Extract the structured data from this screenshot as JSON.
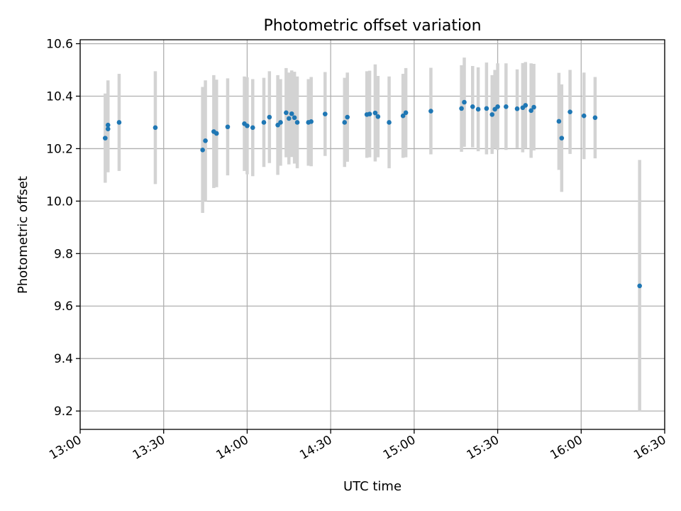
{
  "chart_data": {
    "type": "scatter",
    "title": "Photometric offset variation",
    "xlabel": "UTC time",
    "ylabel": "Photometric offset",
    "xlim_minutes_after_13_00": [
      0,
      210
    ],
    "ylim": [
      9.13,
      10.615
    ],
    "grid": true,
    "legend": "none",
    "x_ticks": [
      "13:00",
      "13:30",
      "14:00",
      "14:30",
      "15:00",
      "15:30",
      "16:00",
      "16:30"
    ],
    "y_ticks": [
      "9.2",
      "9.4",
      "9.6",
      "9.8",
      "10.0",
      "10.2",
      "10.4",
      "10.6"
    ],
    "y_tick_values": [
      9.2,
      9.4,
      9.6,
      9.8,
      10.0,
      10.2,
      10.4,
      10.6
    ],
    "colors": {
      "points": "#1f77b4",
      "errorbars": "#d3d3d3",
      "grid": "#b0b0b0"
    },
    "series": [
      {
        "time": [
          "13:09",
          "13:10",
          "13:10",
          "13:14",
          "13:27",
          "13:44",
          "13:45",
          "13:48",
          "13:49",
          "13:53",
          "13:59",
          "14:00",
          "14:02",
          "14:06",
          "14:08",
          "14:11",
          "14:12",
          "14:14",
          "14:15",
          "14:16",
          "14:17",
          "14:18",
          "14:22",
          "14:23",
          "14:28",
          "14:35",
          "14:36",
          "14:43",
          "14:44",
          "14:46",
          "14:47",
          "14:51",
          "14:56",
          "14:57",
          "15:06",
          "15:17",
          "15:18",
          "15:21",
          "15:23",
          "15:26",
          "15:28",
          "15:29",
          "15:30",
          "15:33",
          "15:37",
          "15:39",
          "15:40",
          "15:42",
          "15:43",
          "15:52",
          "15:53",
          "15:56",
          "16:01",
          "16:05",
          "16:21"
        ],
        "y": [
          10.24,
          10.29,
          10.275,
          10.3,
          10.28,
          10.195,
          10.23,
          10.265,
          10.258,
          10.283,
          10.295,
          10.287,
          10.28,
          10.3,
          10.32,
          10.29,
          10.3,
          10.337,
          10.315,
          10.333,
          10.318,
          10.3,
          10.3,
          10.303,
          10.332,
          10.3,
          10.32,
          10.33,
          10.332,
          10.336,
          10.322,
          10.3,
          10.325,
          10.337,
          10.343,
          10.353,
          10.377,
          10.36,
          10.35,
          10.353,
          10.33,
          10.35,
          10.36,
          10.36,
          10.352,
          10.356,
          10.365,
          10.345,
          10.358,
          10.304,
          10.24,
          10.34,
          10.325,
          10.318,
          9.677
        ],
        "err": [
          0.17,
          0.17,
          0.165,
          0.185,
          0.215,
          0.24,
          0.23,
          0.215,
          0.205,
          0.185,
          0.18,
          0.185,
          0.185,
          0.17,
          0.175,
          0.19,
          0.165,
          0.17,
          0.175,
          0.165,
          0.175,
          0.175,
          0.165,
          0.17,
          0.16,
          0.17,
          0.17,
          0.165,
          0.165,
          0.185,
          0.155,
          0.175,
          0.16,
          0.17,
          0.165,
          0.165,
          0.17,
          0.155,
          0.16,
          0.175,
          0.15,
          0.15,
          0.165,
          0.165,
          0.15,
          0.17,
          0.165,
          0.18,
          0.165,
          0.185,
          0.205,
          0.16,
          0.165,
          0.155,
          0.48
        ]
      }
    ]
  }
}
